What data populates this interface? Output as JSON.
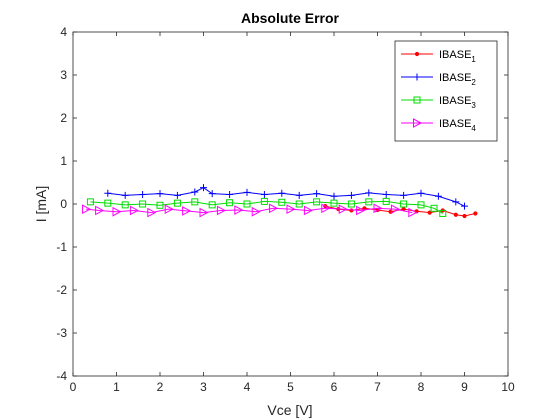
{
  "chart_data": {
    "type": "line",
    "title": "Absolute Error",
    "xlabel": "Vce [V]",
    "ylabel": "I [mA]",
    "xlim": [
      0,
      10
    ],
    "ylim": [
      -4,
      4
    ],
    "xticks": [
      0,
      1,
      2,
      3,
      4,
      5,
      6,
      7,
      8,
      9,
      10
    ],
    "yticks": [
      -4,
      -3,
      -2,
      -1,
      0,
      1,
      2,
      3,
      4
    ],
    "grid": false,
    "legend_position": "top-right",
    "series": [
      {
        "name": "IBASE",
        "subscript": "1",
        "color": "#ff0000",
        "marker": "point",
        "x": [
          5.8,
          6.1,
          6.4,
          6.7,
          7.0,
          7.3,
          7.6,
          7.9,
          8.2,
          8.5,
          8.8,
          9.0,
          9.25
        ],
        "y": [
          -0.05,
          -0.12,
          -0.15,
          -0.1,
          -0.14,
          -0.18,
          -0.12,
          -0.17,
          -0.2,
          -0.15,
          -0.25,
          -0.28,
          -0.22
        ]
      },
      {
        "name": "IBASE",
        "subscript": "2",
        "color": "#0000ff",
        "marker": "plus",
        "x": [
          0.8,
          1.2,
          1.6,
          2.0,
          2.4,
          2.8,
          3.0,
          3.2,
          3.6,
          4.0,
          4.4,
          4.8,
          5.2,
          5.6,
          6.0,
          6.4,
          6.8,
          7.2,
          7.6,
          8.0,
          8.4,
          8.8,
          9.0
        ],
        "y": [
          0.25,
          0.2,
          0.22,
          0.24,
          0.2,
          0.28,
          0.38,
          0.24,
          0.22,
          0.27,
          0.22,
          0.25,
          0.2,
          0.24,
          0.18,
          0.2,
          0.26,
          0.22,
          0.2,
          0.25,
          0.18,
          0.05,
          -0.05
        ]
      },
      {
        "name": "IBASE",
        "subscript": "3",
        "color": "#00dd00",
        "marker": "square",
        "x": [
          0.4,
          0.8,
          1.2,
          1.6,
          2.0,
          2.4,
          2.8,
          3.2,
          3.6,
          4.0,
          4.4,
          4.8,
          5.2,
          5.6,
          6.0,
          6.4,
          6.8,
          7.2,
          7.6,
          8.0,
          8.3,
          8.5
        ],
        "y": [
          0.05,
          0.02,
          -0.02,
          0.0,
          -0.03,
          0.02,
          0.05,
          -0.02,
          0.03,
          0.0,
          0.06,
          0.04,
          0.0,
          0.05,
          0.02,
          0.0,
          0.05,
          0.06,
          0.0,
          -0.02,
          -0.1,
          -0.22
        ]
      },
      {
        "name": "IBASE",
        "subscript": "4",
        "color": "#ff00ff",
        "marker": "triangle-right",
        "x": [
          0.3,
          0.6,
          1.0,
          1.4,
          1.8,
          2.2,
          2.6,
          3.0,
          3.4,
          3.8,
          4.2,
          4.6,
          5.0,
          5.4,
          5.8,
          6.2,
          6.6,
          7.0,
          7.4,
          7.8
        ],
        "y": [
          -0.12,
          -0.15,
          -0.18,
          -0.15,
          -0.2,
          -0.12,
          -0.16,
          -0.2,
          -0.15,
          -0.14,
          -0.18,
          -0.1,
          -0.12,
          -0.15,
          -0.1,
          -0.12,
          -0.15,
          -0.1,
          -0.12,
          -0.2
        ]
      }
    ]
  }
}
